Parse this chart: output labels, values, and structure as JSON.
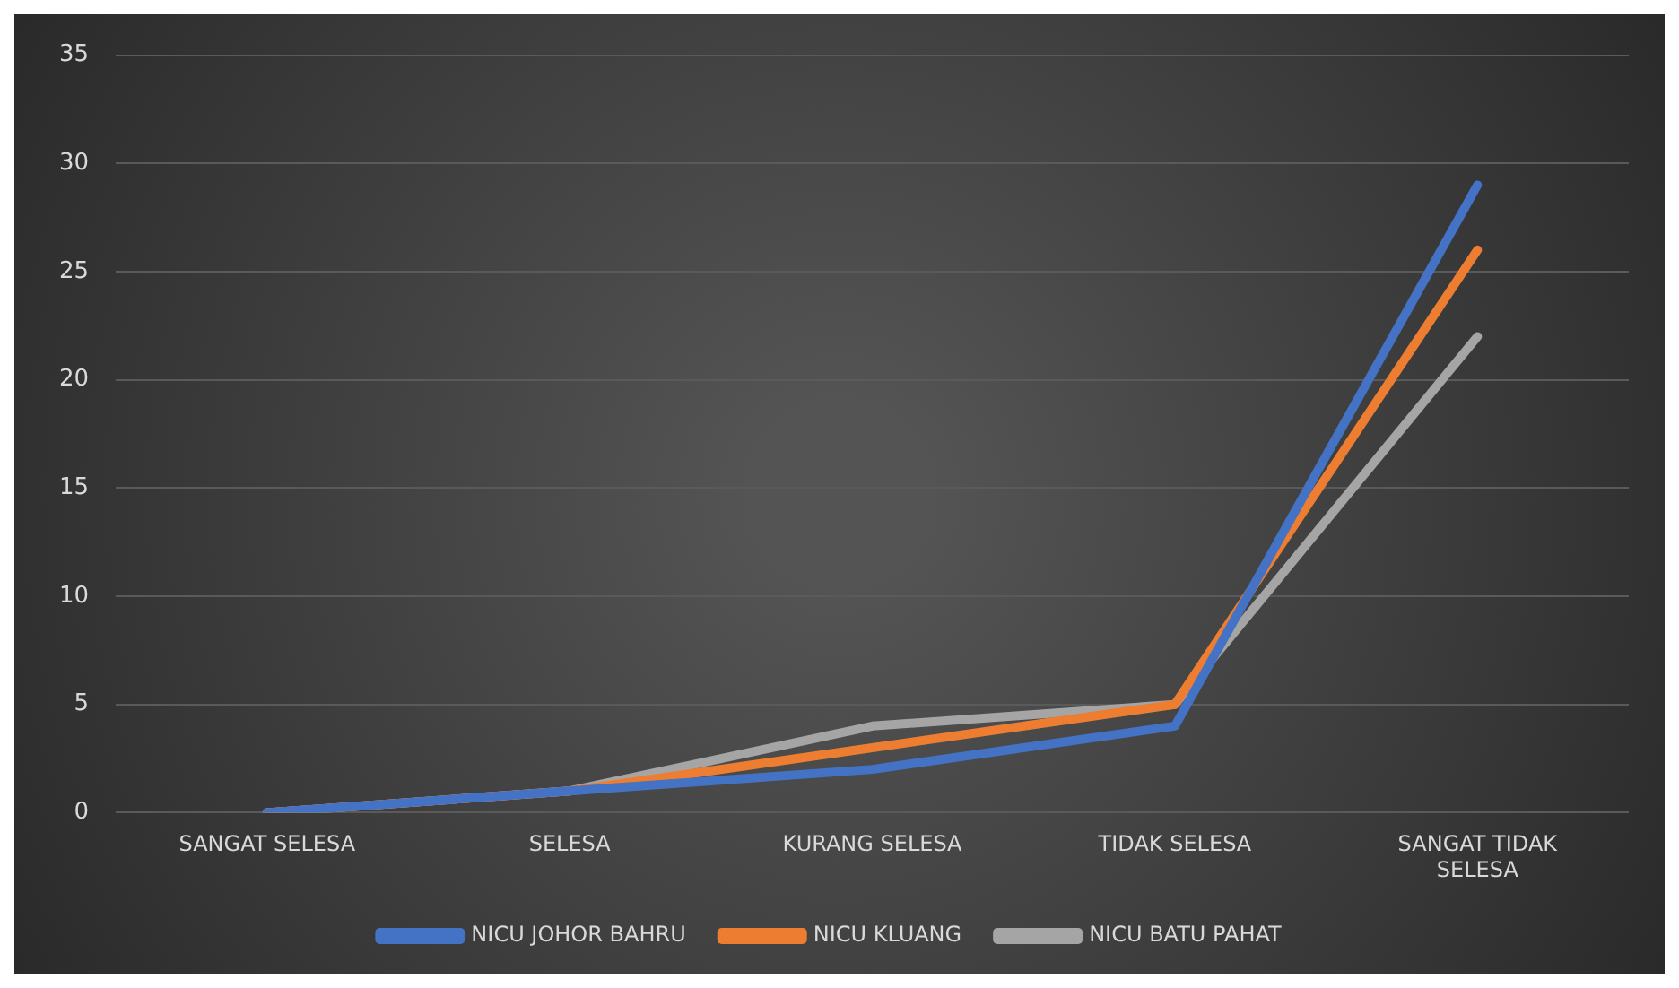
{
  "chart_data": {
    "type": "line",
    "categories": [
      "SANGAT SELESA",
      "SELESA",
      "KURANG SELESA",
      "TIDAK SELESA",
      "SANGAT TIDAK SELESA"
    ],
    "series": [
      {
        "name": "NICU JOHOR BAHRU",
        "color": "#4472c4",
        "values": [
          0,
          1,
          2,
          4,
          29
        ]
      },
      {
        "name": "NICU KLUANG",
        "color": "#ed7d31",
        "values": [
          0,
          1,
          3,
          5,
          26
        ]
      },
      {
        "name": "NICU BATU PAHAT",
        "color": "#a5a5a5",
        "values": [
          0,
          1,
          4,
          5,
          22
        ]
      }
    ],
    "ylim": [
      0,
      35
    ],
    "yticks": [
      0,
      5,
      10,
      15,
      20,
      25,
      30,
      35
    ],
    "grid": "y",
    "legend": "bottom",
    "marker": "none",
    "line_style": "solid"
  }
}
